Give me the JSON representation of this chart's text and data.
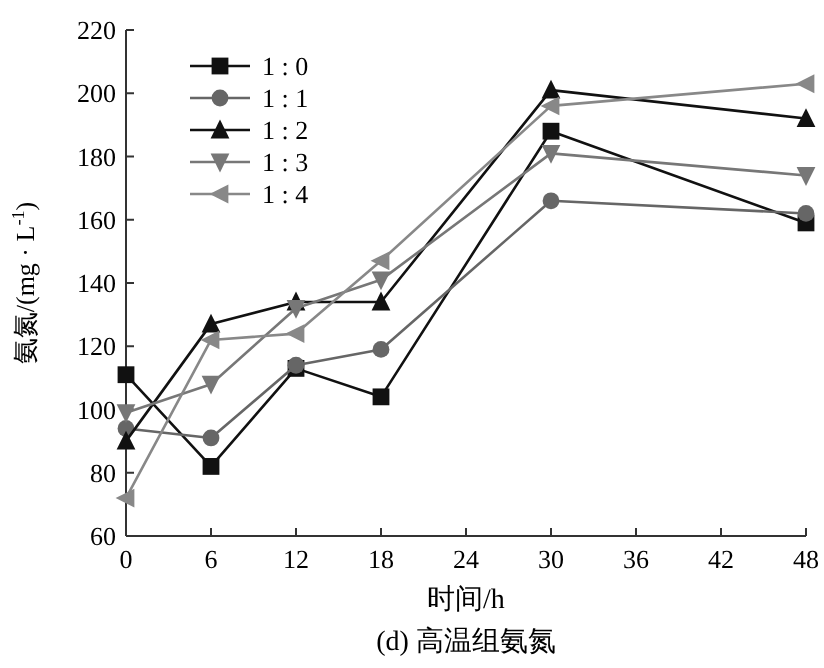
{
  "chart_data": {
    "type": "line",
    "title": "(d) 高温组氨氮",
    "xlabel": "时间/h",
    "ylabel": "氨氮/(mg · L$^{-1}$)",
    "x": [
      0,
      6,
      12,
      18,
      30,
      48
    ],
    "series": [
      {
        "name": "1 : 0",
        "color": "#111111",
        "marker": "square",
        "values": [
          111,
          82,
          113,
          104,
          188,
          159
        ]
      },
      {
        "name": "1 : 1",
        "color": "#666666",
        "marker": "circle",
        "values": [
          94,
          91,
          114,
          119,
          166,
          162
        ]
      },
      {
        "name": "1 : 2",
        "color": "#111111",
        "marker": "triangle",
        "values": [
          90,
          127,
          134,
          134,
          201,
          192
        ]
      },
      {
        "name": "1 : 3",
        "color": "#777777",
        "marker": "triangle-down",
        "values": [
          99,
          108,
          132,
          141,
          181,
          174
        ]
      },
      {
        "name": "1 : 4",
        "color": "#888888",
        "marker": "triangle-left",
        "values": [
          72,
          122,
          124,
          147,
          196,
          203
        ]
      }
    ],
    "xlim": [
      0,
      48
    ],
    "xticks": [
      0,
      6,
      12,
      18,
      24,
      30,
      36,
      42,
      48
    ],
    "ylim": [
      60,
      220
    ],
    "yticks": [
      60,
      80,
      100,
      120,
      140,
      160,
      180,
      200,
      220
    ],
    "grid": false,
    "legend": "top left",
    "line_style": "solid"
  }
}
